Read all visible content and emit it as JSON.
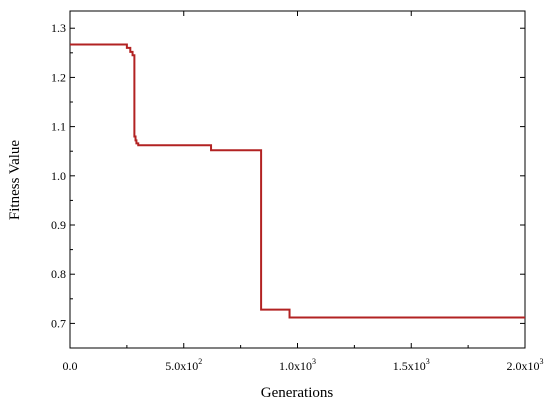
{
  "chart_data": {
    "type": "line",
    "title": "",
    "xlabel": "Generations",
    "ylabel": "Fitness Value",
    "xlim": [
      0,
      2000
    ],
    "ylim": [
      0.65,
      1.335
    ],
    "grid": false,
    "legend": "none",
    "x_ticks": [
      {
        "value": 0,
        "base": "0.0",
        "exp": ""
      },
      {
        "value": 500,
        "base": "5.0x10",
        "exp": "2"
      },
      {
        "value": 1000,
        "base": "1.0x10",
        "exp": "3"
      },
      {
        "value": 1500,
        "base": "1.5x10",
        "exp": "3"
      },
      {
        "value": 2000,
        "base": "2.0x10",
        "exp": "3"
      }
    ],
    "y_ticks": [
      {
        "value": 0.7,
        "label": "0.7"
      },
      {
        "value": 0.8,
        "label": "0.8"
      },
      {
        "value": 0.9,
        "label": "0.9"
      },
      {
        "value": 1.0,
        "label": "1.0"
      },
      {
        "value": 1.1,
        "label": "1.1"
      },
      {
        "value": 1.2,
        "label": "1.2"
      },
      {
        "value": 1.3,
        "label": "1.3"
      }
    ],
    "series": [
      {
        "color": "#b22222",
        "step": true,
        "x": [
          0,
          250,
          265,
          275,
          283,
          288,
          292,
          300,
          620,
          840,
          965,
          2000
        ],
        "y": [
          1.267,
          1.26,
          1.252,
          1.245,
          1.08,
          1.072,
          1.066,
          1.062,
          1.052,
          0.728,
          0.712,
          0.712
        ]
      }
    ]
  }
}
